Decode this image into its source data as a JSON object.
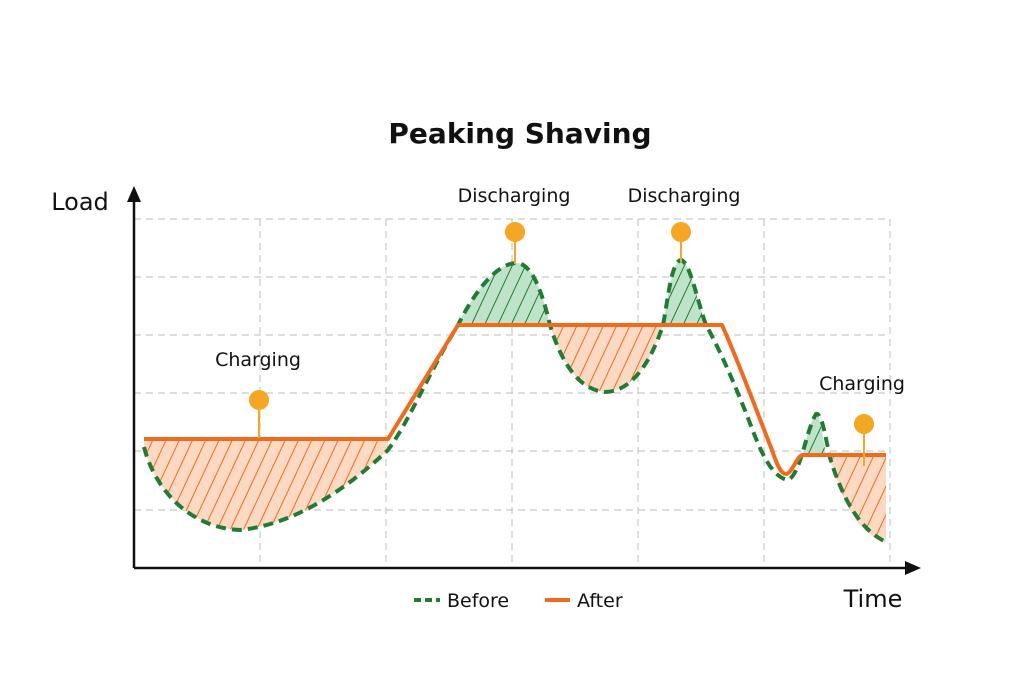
{
  "title": "Peaking Shaving",
  "axes": {
    "y_label": "Load",
    "x_label": "Time"
  },
  "annotations": [
    {
      "label": "Charging",
      "type": "charging"
    },
    {
      "label": "Discharging",
      "type": "discharging"
    },
    {
      "label": "Discharging",
      "type": "discharging"
    },
    {
      "label": "Charging",
      "type": "charging"
    }
  ],
  "legend": [
    {
      "label": "Before",
      "style": "dashed",
      "color": "#1e7d32"
    },
    {
      "label": "After",
      "style": "solid",
      "color": "#f26a1b"
    }
  ],
  "colors": {
    "before": "#1e7d32",
    "after": "#f26a1b",
    "marker": "#f5a623",
    "grid": "#bdbdbd",
    "charge_fill": "#fcd9c2",
    "discharge_fill": "#bfe3c9"
  }
}
